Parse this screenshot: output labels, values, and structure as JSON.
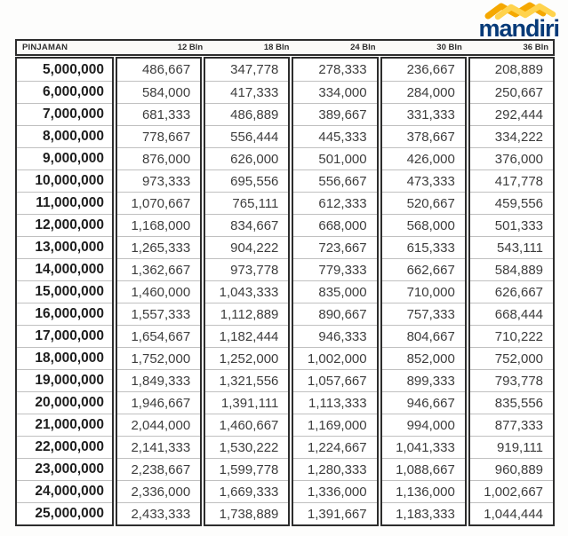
{
  "brand": {
    "logo_text": "mandiri",
    "logo_color": "#063a78",
    "wave_color_gold": "#f5a800",
    "wave_color_yellow": "#ffd34d"
  },
  "table": {
    "header": {
      "loan_label": "PINJAMAN",
      "term_labels": [
        "12 Bln",
        "18 Bln",
        "24 Bln",
        "30 Bln",
        "36 Bln"
      ]
    },
    "rows": [
      {
        "pinjaman": "5,000,000",
        "installments": [
          "486,667",
          "347,778",
          "278,333",
          "236,667",
          "208,889"
        ]
      },
      {
        "pinjaman": "6,000,000",
        "installments": [
          "584,000",
          "417,333",
          "334,000",
          "284,000",
          "250,667"
        ]
      },
      {
        "pinjaman": "7,000,000",
        "installments": [
          "681,333",
          "486,889",
          "389,667",
          "331,333",
          "292,444"
        ]
      },
      {
        "pinjaman": "8,000,000",
        "installments": [
          "778,667",
          "556,444",
          "445,333",
          "378,667",
          "334,222"
        ]
      },
      {
        "pinjaman": "9,000,000",
        "installments": [
          "876,000",
          "626,000",
          "501,000",
          "426,000",
          "376,000"
        ]
      },
      {
        "pinjaman": "10,000,000",
        "installments": [
          "973,333",
          "695,556",
          "556,667",
          "473,333",
          "417,778"
        ]
      },
      {
        "pinjaman": "11,000,000",
        "installments": [
          "1,070,667",
          "765,111",
          "612,333",
          "520,667",
          "459,556"
        ]
      },
      {
        "pinjaman": "12,000,000",
        "installments": [
          "1,168,000",
          "834,667",
          "668,000",
          "568,000",
          "501,333"
        ]
      },
      {
        "pinjaman": "13,000,000",
        "installments": [
          "1,265,333",
          "904,222",
          "723,667",
          "615,333",
          "543,111"
        ]
      },
      {
        "pinjaman": "14,000,000",
        "installments": [
          "1,362,667",
          "973,778",
          "779,333",
          "662,667",
          "584,889"
        ]
      },
      {
        "pinjaman": "15,000,000",
        "installments": [
          "1,460,000",
          "1,043,333",
          "835,000",
          "710,000",
          "626,667"
        ]
      },
      {
        "pinjaman": "16,000,000",
        "installments": [
          "1,557,333",
          "1,112,889",
          "890,667",
          "757,333",
          "668,444"
        ]
      },
      {
        "pinjaman": "17,000,000",
        "installments": [
          "1,654,667",
          "1,182,444",
          "946,333",
          "804,667",
          "710,222"
        ]
      },
      {
        "pinjaman": "18,000,000",
        "installments": [
          "1,752,000",
          "1,252,000",
          "1,002,000",
          "852,000",
          "752,000"
        ]
      },
      {
        "pinjaman": "19,000,000",
        "installments": [
          "1,849,333",
          "1,321,556",
          "1,057,667",
          "899,333",
          "793,778"
        ]
      },
      {
        "pinjaman": "20,000,000",
        "installments": [
          "1,946,667",
          "1,391,111",
          "1,113,333",
          "946,667",
          "835,556"
        ]
      },
      {
        "pinjaman": "21,000,000",
        "installments": [
          "2,044,000",
          "1,460,667",
          "1,169,000",
          "994,000",
          "877,333"
        ]
      },
      {
        "pinjaman": "22,000,000",
        "installments": [
          "2,141,333",
          "1,530,222",
          "1,224,667",
          "1,041,333",
          "919,111"
        ]
      },
      {
        "pinjaman": "23,000,000",
        "installments": [
          "2,238,667",
          "1,599,778",
          "1,280,333",
          "1,088,667",
          "960,889"
        ]
      },
      {
        "pinjaman": "24,000,000",
        "installments": [
          "2,336,000",
          "1,669,333",
          "1,336,000",
          "1,136,000",
          "1,002,667"
        ]
      },
      {
        "pinjaman": "25,000,000",
        "installments": [
          "2,433,333",
          "1,738,889",
          "1,391,667",
          "1,183,333",
          "1,044,444"
        ]
      }
    ]
  }
}
